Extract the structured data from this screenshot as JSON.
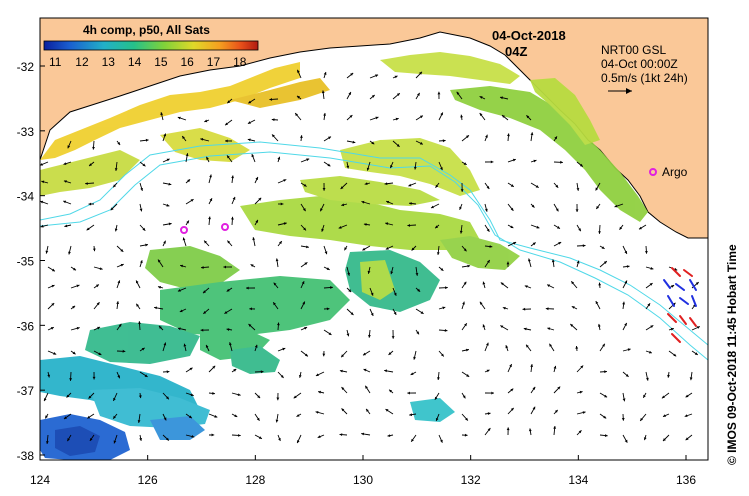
{
  "colorbar": {
    "title": "4h comp, p50, All Sats",
    "ticks": [
      "11",
      "12",
      "13",
      "14",
      "15",
      "16",
      "17",
      "18"
    ],
    "colors": [
      "#0a1f9e",
      "#1a5fd0",
      "#22b0c8",
      "#25c18a",
      "#7fd23a",
      "#e0d829",
      "#f5a020",
      "#e8501a",
      "#b01a10"
    ]
  },
  "date": {
    "line1": "04-Oct-2018",
    "line2": "04Z"
  },
  "legend": {
    "product": "NRT00 GSL",
    "time": "04-Oct 00:00Z",
    "scale": "0.5m/s (1kt 24h)"
  },
  "argo": {
    "label": "Argo",
    "color": "#e020e0"
  },
  "side_caption": "© IMOS 09-Oct-2018 11:45 Hobart Time",
  "axes": {
    "x_ticks": [
      "124",
      "126",
      "128",
      "130",
      "132",
      "134",
      "136"
    ],
    "y_ticks": [
      "-32",
      "-33",
      "-34",
      "-35",
      "-36",
      "-37",
      "-38"
    ]
  },
  "colors": {
    "land": "#fac898",
    "contour": "#50d8e8",
    "mooring_red": "#e02020",
    "mooring_blue": "#2030e0"
  }
}
